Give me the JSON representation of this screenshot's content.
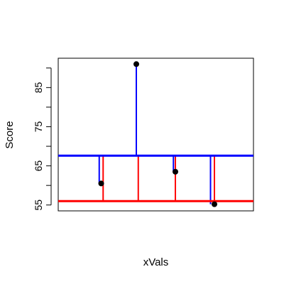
{
  "chart_data": {
    "type": "scatter",
    "title": "",
    "xlabel": "xVals",
    "ylabel": "Score",
    "xlim": [
      0.5,
      5.5
    ],
    "ylim": [
      53.5,
      92.5
    ],
    "grid": false,
    "legend": "none",
    "y_ticks": [
      55,
      60,
      65,
      70,
      75,
      80,
      85,
      90
    ],
    "y_tick_labels": [
      "55",
      "",
      "65",
      "",
      "75",
      "",
      "85",
      ""
    ],
    "points": [
      {
        "x": 1.6,
        "y": 60.5
      },
      {
        "x": 2.5,
        "y": 91.0
      },
      {
        "x": 3.5,
        "y": 63.5
      },
      {
        "x": 4.5,
        "y": 55.2
      }
    ],
    "reference_lines": [
      {
        "name": "",
        "y": 67.6,
        "color": "#0000ff"
      },
      {
        "name": "",
        "y": 56.0,
        "color": "#ff0000"
      }
    ],
    "blue_segments": [
      {
        "x": 1.55,
        "y_from": 67.6,
        "y_to": 60.5
      },
      {
        "x": 2.5,
        "y_from": 67.6,
        "y_to": 91.0
      },
      {
        "x": 3.45,
        "y_from": 67.6,
        "y_to": 63.5
      },
      {
        "x": 4.4,
        "y_from": 67.6,
        "y_to": 55.2
      }
    ],
    "red_segments": [
      {
        "x": 1.65,
        "y_from": 56.0,
        "y_to": 67.6
      },
      {
        "x": 2.55,
        "y_from": 56.0,
        "y_to": 67.6
      },
      {
        "x": 3.5,
        "y_from": 56.0,
        "y_to": 67.6
      },
      {
        "x": 4.5,
        "y_from": 56.0,
        "y_to": 67.6
      }
    ],
    "colors": {
      "blue": "#0000ff",
      "red": "#ff0000",
      "point": "#000000"
    }
  }
}
